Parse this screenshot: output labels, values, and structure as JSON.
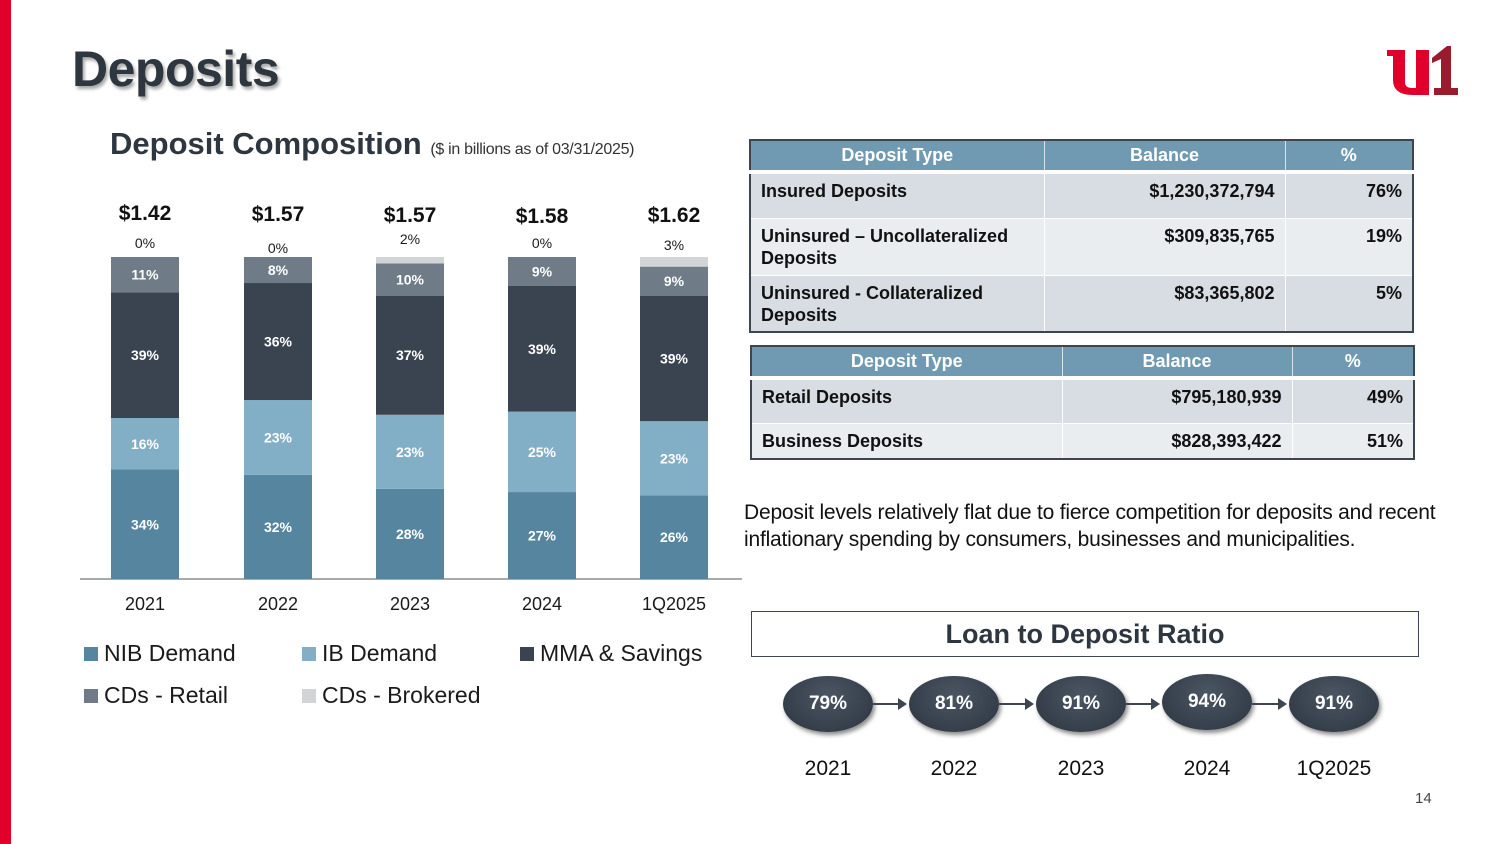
{
  "page": {
    "title": "Deposits",
    "page_number": "14",
    "brand_colors": {
      "accent_red": "#e0002b",
      "logo_dark_red": "#9b1b2e"
    }
  },
  "logo": {
    "icon": "u1-logo-icon",
    "text": "u1"
  },
  "composition": {
    "title": "Deposit Composition",
    "subtitle": "($ in billions as of 03/31/2025)"
  },
  "chart_data": {
    "type": "bar",
    "stacked": true,
    "percent": true,
    "title": "Deposit Composition",
    "subtitle": "($ in billions as of 03/31/2025)",
    "xlabel": "",
    "ylabel": "",
    "ylim": [
      0,
      100
    ],
    "grid": false,
    "legend_position": "bottom",
    "categories": [
      "2021",
      "2022",
      "2023",
      "2024",
      "1Q2025"
    ],
    "totals": [
      "$1.42",
      "$1.57",
      "$1.57",
      "$1.58",
      "$1.62"
    ],
    "series": [
      {
        "name": "NIB Demand",
        "color": "#56869f",
        "values": [
          34,
          32,
          28,
          27,
          26
        ],
        "labels": [
          "34%",
          "32%",
          "28%",
          "27%",
          "26%"
        ]
      },
      {
        "name": "IB Demand",
        "color": "#83afc6",
        "values": [
          16,
          23,
          23,
          25,
          23
        ],
        "labels": [
          "16%",
          "23%",
          "23%",
          "25%",
          "23%"
        ]
      },
      {
        "name": "MMA & Savings",
        "color": "#3a4450",
        "values": [
          39,
          36,
          37,
          39,
          39
        ],
        "labels": [
          "39%",
          "36%",
          "37%",
          "39%",
          "39%"
        ]
      },
      {
        "name": "CDs - Retail",
        "color": "#6f7b86",
        "values": [
          11,
          8,
          10,
          9,
          9
        ],
        "labels": [
          "11%",
          "8%",
          "10%",
          "9%",
          "9%"
        ]
      },
      {
        "name": "CDs - Brokered",
        "color": "#d2d4d6",
        "values": [
          0,
          0,
          2,
          0,
          3
        ],
        "labels": [
          "0%",
          "0%",
          "2%",
          "0%",
          "3%"
        ]
      }
    ]
  },
  "insured_table": {
    "headers": [
      "Deposit Type",
      "Balance",
      "%"
    ],
    "rows": [
      {
        "type": "Insured Deposits",
        "balance": "$1,230,372,794",
        "pct": "76%"
      },
      {
        "type": "Uninsured – Uncollateralized Deposits",
        "balance": "$309,835,765",
        "pct": "19%"
      },
      {
        "type": "Uninsured - Collateralized Deposits",
        "balance": "$83,365,802",
        "pct": "5%"
      }
    ]
  },
  "segment_table": {
    "headers": [
      "Deposit Type",
      "Balance",
      "%"
    ],
    "rows": [
      {
        "type": "Retail Deposits",
        "balance": "$795,180,939",
        "pct": "49%"
      },
      {
        "type": "Business Deposits",
        "balance": "$828,393,422",
        "pct": "51%"
      }
    ]
  },
  "note": "Deposit levels relatively flat due to fierce competition for deposits and recent inflationary spending by consumers, businesses and municipalities.",
  "loan_to_deposit": {
    "title": "Loan to Deposit Ratio",
    "items": [
      {
        "year": "2021",
        "value": "79%"
      },
      {
        "year": "2022",
        "value": "81%"
      },
      {
        "year": "2023",
        "value": "91%"
      },
      {
        "year": "2024",
        "value": "94%"
      },
      {
        "year": "1Q2025",
        "value": "91%"
      }
    ]
  }
}
